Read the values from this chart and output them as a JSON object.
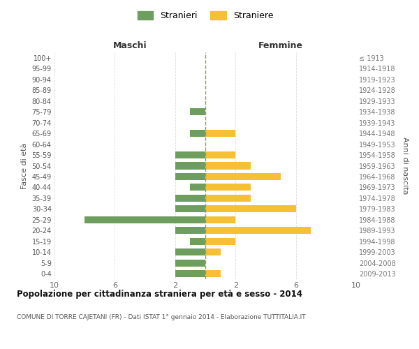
{
  "age_groups": [
    "0-4",
    "5-9",
    "10-14",
    "15-19",
    "20-24",
    "25-29",
    "30-34",
    "35-39",
    "40-44",
    "45-49",
    "50-54",
    "55-59",
    "60-64",
    "65-69",
    "70-74",
    "75-79",
    "80-84",
    "85-89",
    "90-94",
    "95-99",
    "100+"
  ],
  "birth_years": [
    "2009-2013",
    "2004-2008",
    "1999-2003",
    "1994-1998",
    "1989-1993",
    "1984-1988",
    "1979-1983",
    "1974-1978",
    "1969-1973",
    "1964-1968",
    "1959-1963",
    "1954-1958",
    "1949-1953",
    "1944-1948",
    "1939-1943",
    "1934-1938",
    "1929-1933",
    "1924-1928",
    "1919-1923",
    "1914-1918",
    "≤ 1913"
  ],
  "stranieri": [
    2,
    2,
    2,
    1,
    2,
    8,
    2,
    2,
    1,
    2,
    2,
    2,
    0,
    1,
    0,
    1,
    0,
    0,
    0,
    0,
    0
  ],
  "straniere": [
    1,
    0,
    1,
    2,
    7,
    2,
    6,
    3,
    3,
    5,
    3,
    2,
    0,
    2,
    0,
    0,
    0,
    0,
    0,
    0,
    0
  ],
  "male_color": "#6e9e5e",
  "female_color": "#f5c034",
  "center_line_color": "#999966",
  "title": "Popolazione per cittadinanza straniera per età e sesso - 2014",
  "subtitle": "COMUNE DI TORRE CAJETANI (FR) - Dati ISTAT 1° gennaio 2014 - Elaborazione TUTTITALIA.IT",
  "xlabel_left": "Maschi",
  "xlabel_right": "Femmine",
  "ylabel_left": "Fasce di età",
  "ylabel_right": "Anni di nascita",
  "xlim": 10,
  "legend_stranieri": "Stranieri",
  "legend_straniere": "Straniere",
  "background_color": "#ffffff",
  "grid_color": "#dddddd"
}
